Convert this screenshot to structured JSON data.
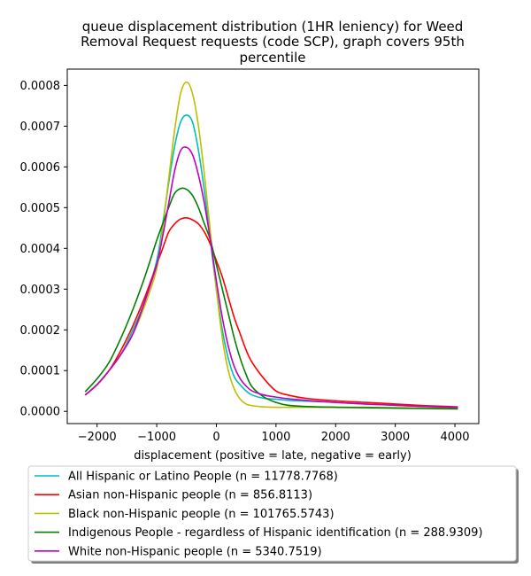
{
  "chart_data": {
    "type": "line",
    "title_lines": [
      "queue displacement distribution (1HR leniency) for Weed",
      "Removal Request  requests (code SCP), graph covers 95th",
      "percentile"
    ],
    "xlabel": "displacement (positive = late, negative = early)",
    "ylabel": "",
    "xlim": [
      -2500,
      4400
    ],
    "ylim": [
      -3e-05,
      0.00084
    ],
    "x_ticks": [
      -2000,
      -1000,
      0,
      1000,
      2000,
      3000,
      4000
    ],
    "x_tick_labels": [
      "−2000",
      "−1000",
      "0",
      "1000",
      "2000",
      "3000",
      "4000"
    ],
    "y_ticks": [
      0,
      0.0001,
      0.0002,
      0.0003,
      0.0004,
      0.0005,
      0.0006,
      0.0007,
      0.0008
    ],
    "y_tick_labels": [
      "0.0000",
      "0.0001",
      "0.0002",
      "0.0003",
      "0.0004",
      "0.0005",
      "0.0006",
      "0.0007",
      "0.0008"
    ],
    "grid": false,
    "legend_position": "below",
    "x": [
      -2200,
      -2000,
      -1800,
      -1600,
      -1400,
      -1200,
      -1000,
      -900,
      -800,
      -700,
      -600,
      -500,
      -400,
      -300,
      -200,
      -100,
      0,
      100,
      200,
      300,
      400,
      500,
      600,
      800,
      1000,
      1200,
      1500,
      2000,
      2500,
      3000,
      3500,
      4050
    ],
    "series": [
      {
        "name": "All Hispanic or Latino People (n = 11778.7768)",
        "color": "#00bfbf",
        "values": [
          4e-05,
          6.5e-05,
          0.0001,
          0.00014,
          0.0002,
          0.00027,
          0.00037,
          0.00046,
          0.00056,
          0.00065,
          0.00071,
          0.000727,
          0.00071,
          0.00064,
          0.00054,
          0.00042,
          0.0003,
          0.0002,
          0.00013,
          8.5e-05,
          6.5e-05,
          5e-05,
          4e-05,
          3.2e-05,
          3e-05,
          2.7e-05,
          2.5e-05,
          2.2e-05,
          1.8e-05,
          1.5e-05,
          1.2e-05,
          9e-06
        ]
      },
      {
        "name": "Asian non-Hispanic people (n = 856.8113)",
        "color": "#ff0000",
        "values": [
          4e-05,
          6.5e-05,
          0.0001,
          0.00015,
          0.00021,
          0.00028,
          0.00036,
          0.0004,
          0.00044,
          0.00046,
          0.000472,
          0.000475,
          0.00047,
          0.00046,
          0.00044,
          0.00041,
          0.00037,
          0.00033,
          0.00028,
          0.00023,
          0.00019,
          0.00015,
          0.00012,
          8e-05,
          5e-05,
          4e-05,
          3.2e-05,
          2.6e-05,
          2.2e-05,
          1.8e-05,
          1.4e-05,
          1.1e-05
        ]
      },
      {
        "name": "Black non-Hispanic people (n = 101765.5743)",
        "color": "#bfbf00",
        "values": [
          4e-05,
          6.5e-05,
          0.0001,
          0.00014,
          0.00019,
          0.00026,
          0.00035,
          0.00045,
          0.00057,
          0.00069,
          0.00078,
          0.000808,
          0.00078,
          0.0007,
          0.00058,
          0.00044,
          0.0003,
          0.00018,
          0.0001,
          5.5e-05,
          3e-05,
          1.8e-05,
          1.4e-05,
          1.1e-05,
          1e-05,
          1e-05,
          1e-05,
          1e-05,
          1e-05,
          9e-06,
          8e-06,
          7e-06
        ]
      },
      {
        "name": "Indigenous People - regardless of Hispanic identification (n = 288.9309)",
        "color": "#008000",
        "values": [
          4.8e-05,
          8e-05,
          0.00012,
          0.00018,
          0.00025,
          0.00033,
          0.00042,
          0.00046,
          0.0005,
          0.000535,
          0.000547,
          0.000545,
          0.00053,
          0.0005,
          0.00046,
          0.00042,
          0.00036,
          0.0003,
          0.00024,
          0.00018,
          0.00013,
          9e-05,
          6e-05,
          3.5e-05,
          2.2e-05,
          1.5e-05,
          1.2e-05,
          1e-05,
          9e-06,
          8e-06,
          7e-06,
          6e-06
        ]
      },
      {
        "name": "White non-Hispanic people (n = 5340.7519)",
        "color": "#bf00bf",
        "values": [
          4e-05,
          6.6e-05,
          0.0001,
          0.00014,
          0.00019,
          0.00027,
          0.00036,
          0.00043,
          0.00051,
          0.00059,
          0.00064,
          0.000648,
          0.00063,
          0.00058,
          0.00051,
          0.00042,
          0.00032,
          0.00023,
          0.00016,
          0.00011,
          8e-05,
          6.2e-05,
          5e-05,
          4e-05,
          3.5e-05,
          3.1e-05,
          2.7e-05,
          2.2e-05,
          1.8e-05,
          1.5e-05,
          1.2e-05,
          1e-05
        ]
      }
    ]
  }
}
